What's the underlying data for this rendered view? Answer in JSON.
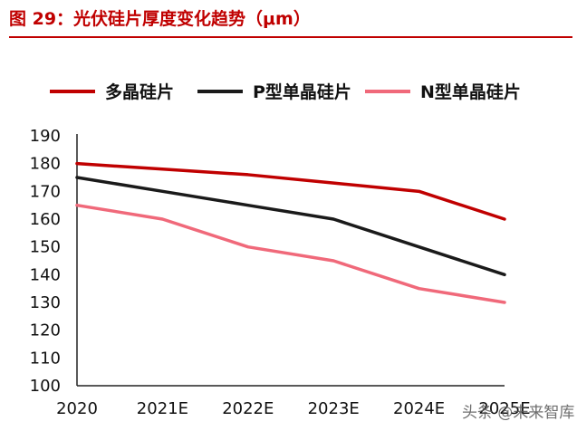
{
  "figure": {
    "title": "图 29：光伏硅片厚度变化趋势（μm）",
    "watermark": "头条 @未来智库"
  },
  "chart_data": {
    "type": "line",
    "title": "图 29：光伏硅片厚度变化趋势（μm）",
    "categories": [
      "2020",
      "2021E",
      "2022E",
      "2023E",
      "2024E",
      "2025E"
    ],
    "xlabel": "",
    "ylabel": "",
    "ylim": [
      100,
      190
    ],
    "yticks": [
      100,
      110,
      120,
      130,
      140,
      150,
      160,
      170,
      180,
      190
    ],
    "legend_position": "top",
    "grid": false,
    "series": [
      {
        "name": "多晶硅片",
        "color": "#c00000",
        "values": [
          180,
          178,
          176,
          173,
          170,
          160
        ]
      },
      {
        "name": "P型单晶硅片",
        "color": "#1a1a1a",
        "values": [
          175,
          170,
          165,
          160,
          150,
          140
        ]
      },
      {
        "name": "N型单晶硅片",
        "color": "#f0697a",
        "values": [
          165,
          160,
          150,
          145,
          135,
          130
        ]
      }
    ]
  }
}
